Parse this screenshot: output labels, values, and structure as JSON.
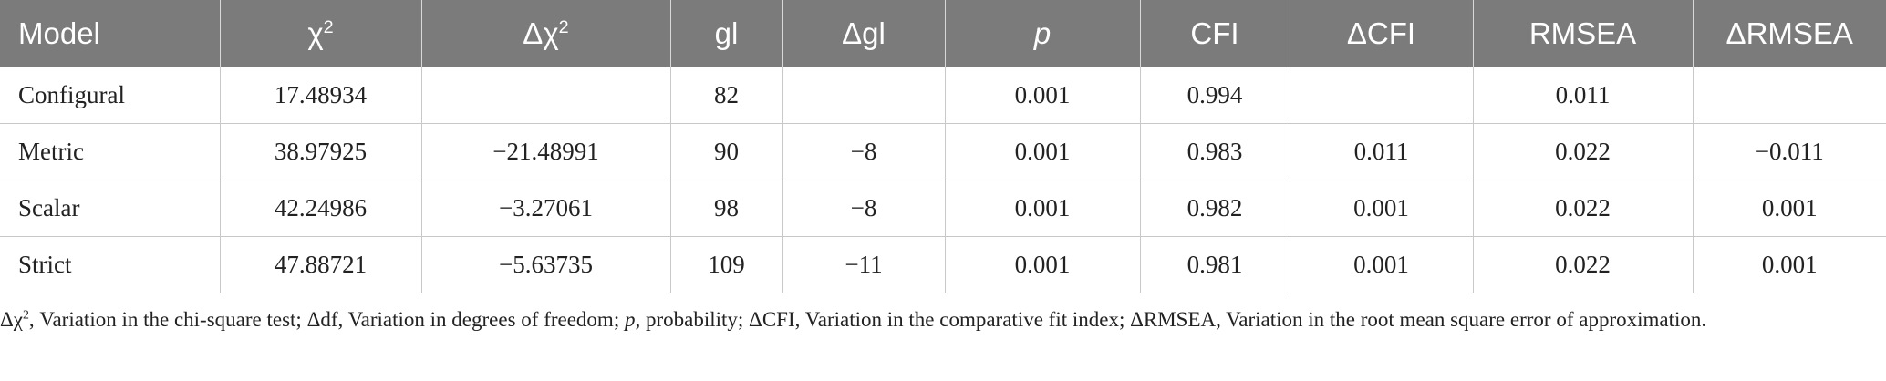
{
  "table": {
    "headers": [
      {
        "pre": "Model",
        "sup": "",
        "italic": false
      },
      {
        "pre": "χ",
        "sup": "2",
        "italic": false
      },
      {
        "pre": "Δχ",
        "sup": "2",
        "italic": false
      },
      {
        "pre": "gl",
        "sup": "",
        "italic": false
      },
      {
        "pre": "Δgl",
        "sup": "",
        "italic": false
      },
      {
        "pre": "p",
        "sup": "",
        "italic": true
      },
      {
        "pre": "CFI",
        "sup": "",
        "italic": false
      },
      {
        "pre": "ΔCFI",
        "sup": "",
        "italic": false
      },
      {
        "pre": "RMSEA",
        "sup": "",
        "italic": false
      },
      {
        "pre": "ΔRMSEA",
        "sup": "",
        "italic": false
      }
    ],
    "rows": [
      [
        "Configural",
        "17.48934",
        "",
        "82",
        "",
        "0.001",
        "0.994",
        "",
        "0.011",
        ""
      ],
      [
        "Metric",
        "38.97925",
        "−21.48991",
        "90",
        "−8",
        "0.001",
        "0.983",
        "0.011",
        "0.022",
        "−0.011"
      ],
      [
        "Scalar",
        "42.24986",
        "−3.27061",
        "98",
        "−8",
        "0.001",
        "0.982",
        "0.001",
        "0.022",
        "0.001"
      ],
      [
        "Strict",
        "47.88721",
        "−5.63735",
        "109",
        "−11",
        "0.001",
        "0.981",
        "0.001",
        "0.022",
        "0.001"
      ]
    ]
  },
  "footnote": {
    "part1": "Δχ",
    "sup": "2",
    "part2": ", Variation in the chi-square test; Δdf, Variation in degrees of freedom; ",
    "p": "p",
    "part3": ", probability; ΔCFI, Variation in the comparative fit index; ΔRMSEA, Variation in the root mean square error of approximation."
  }
}
